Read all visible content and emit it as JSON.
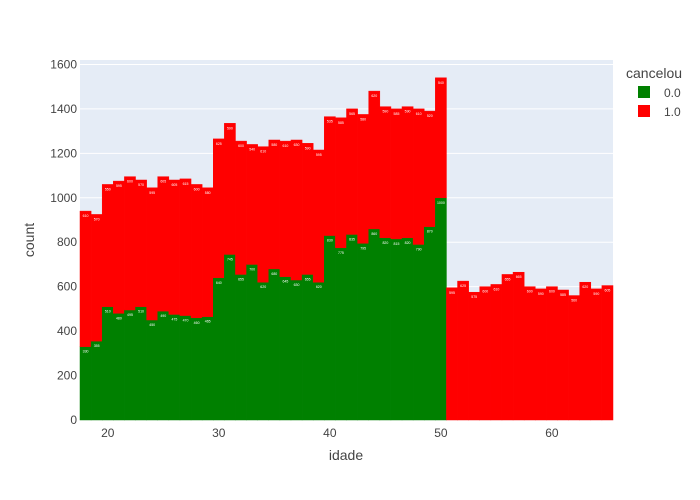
{
  "chart_data": {
    "type": "bar",
    "barmode": "stack",
    "xlabel": "idade",
    "ylabel": "count",
    "xlim": [
      17.5,
      65.5
    ],
    "ylim": [
      0,
      1620
    ],
    "x_ticks": [
      20,
      30,
      40,
      50,
      60
    ],
    "y_ticks": [
      0,
      200,
      400,
      600,
      800,
      1000,
      1200,
      1400,
      1600
    ],
    "grid": true,
    "legend_position": "top-right",
    "legend_title": "cancelou",
    "categories": [
      18,
      19,
      20,
      21,
      22,
      23,
      24,
      25,
      26,
      27,
      28,
      29,
      30,
      31,
      32,
      33,
      34,
      35,
      36,
      37,
      38,
      39,
      40,
      41,
      42,
      43,
      44,
      45,
      46,
      47,
      48,
      49,
      50,
      51,
      52,
      53,
      54,
      55,
      56,
      57,
      58,
      59,
      60,
      61,
      62,
      63,
      64,
      65
    ],
    "series": [
      {
        "name": "0.0",
        "color": "#008000",
        "values": [
          330,
          355,
          510,
          480,
          495,
          510,
          450,
          490,
          475,
          470,
          460,
          465,
          640,
          745,
          655,
          700,
          620,
          680,
          645,
          630,
          655,
          620,
          830,
          775,
          835,
          795,
          860,
          820,
          815,
          820,
          790,
          870,
          1000,
          0,
          0,
          0,
          0,
          0,
          0,
          0,
          0,
          0,
          0,
          0,
          0,
          0,
          0,
          0
        ]
      },
      {
        "name": "1.0",
        "color": "#ff0000",
        "values": [
          610,
          570,
          550,
          595,
          600,
          570,
          595,
          605,
          605,
          615,
          600,
          580,
          625,
          590,
          600,
          540,
          610,
          580,
          610,
          630,
          590,
          595,
          535,
          585,
          565,
          580,
          620,
          590,
          585,
          590,
          610,
          520,
          540,
          595,
          625,
          575,
          600,
          610,
          655,
          665,
          600,
          590,
          600,
          585,
          560,
          620,
          590,
          605
        ]
      }
    ]
  }
}
